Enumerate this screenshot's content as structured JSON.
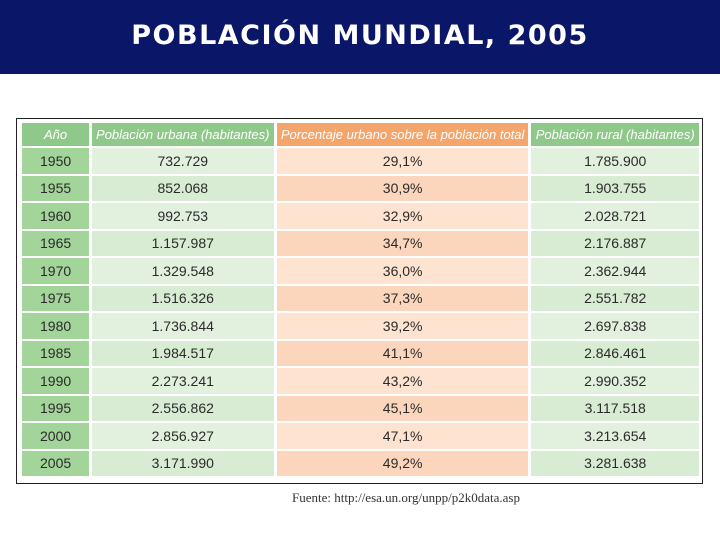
{
  "slide": {
    "title": "POBLACIÓN MUNDIAL, 2005",
    "source": "Fuente: http://esa.un.org/unpp/p2k0data.asp"
  },
  "table": {
    "headers": [
      "Año",
      "Población urbana (habitantes)",
      "Porcentaje urbano sobre la población total",
      "Población rural (habitantes)"
    ],
    "rows": [
      [
        "1950",
        "732.729",
        "29,1%",
        "1.785.900"
      ],
      [
        "1955",
        "852.068",
        "30,9%",
        "1.903.755"
      ],
      [
        "1960",
        "992.753",
        "32,9%",
        "2.028.721"
      ],
      [
        "1965",
        "1.157.987",
        "34,7%",
        "2.176.887"
      ],
      [
        "1970",
        "1.329.548",
        "36,0%",
        "2.362.944"
      ],
      [
        "1975",
        "1.516.326",
        "37,3%",
        "2.551.782"
      ],
      [
        "1980",
        "1.736.844",
        "39,2%",
        "2.697.838"
      ],
      [
        "1985",
        "1.984.517",
        "41,1%",
        "2.846.461"
      ],
      [
        "1990",
        "2.273.241",
        "43,2%",
        "2.990.352"
      ],
      [
        "1995",
        "2.556.862",
        "45,1%",
        "3.117.518"
      ],
      [
        "2000",
        "2.856.927",
        "47,1%",
        "3.213.654"
      ],
      [
        "2005",
        "3.171.990",
        "49,2%",
        "3.281.638"
      ]
    ]
  }
}
